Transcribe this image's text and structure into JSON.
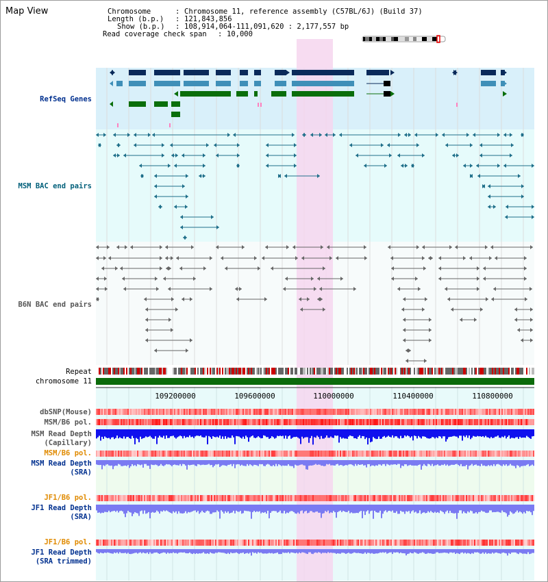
{
  "app_title": "Map View",
  "info": {
    "chromosome_key": "Chromosome",
    "chromosome_val": "Chromosome 11, reference assembly (C57BL/6J) (Build 37)",
    "length_key": "Length (b.p.)",
    "length_val": "121,843,856",
    "show_key": "Show (b.p.)",
    "show_val": "108,914,064-111,091,620 : 2,177,557 bp",
    "coverage_key": "Read coverage check span",
    "coverage_val": "10,000"
  },
  "tracks": {
    "refseq": "RefSeq Genes",
    "msm_bac": "MSM BAC end pairs",
    "b6n_bac": "B6N BAC end pairs",
    "repeat": "Repeat",
    "chromosome": "chromosome 11",
    "dbsnp": "dbSNP(Mouse)",
    "msm_b6_pol_1": "MSM/B6 pol.",
    "msm_read_depth_cap_1": "MSM Read Depth",
    "msm_read_depth_cap_2": "(Capillary)",
    "msm_b6_pol_2": "MSM/B6 pol.",
    "msm_read_depth_sra_1": "MSM Read Depth",
    "msm_read_depth_sra_2": "(SRA)",
    "jf1_b6_pol_1": "JF1/B6 pol.",
    "jf1_read_depth_sra_1": "JF1 Read Depth",
    "jf1_read_depth_sra_2": "(SRA)",
    "jf1_b6_pol_2": "JF1/B6 pol.",
    "jf1_read_depth_trim_1": "JF1 Read Depth",
    "jf1_read_depth_trim_2": "(SRA trimmed)"
  },
  "axis": {
    "ticks": [
      "109200000",
      "109600000",
      "110000000",
      "110400000",
      "110800000"
    ]
  },
  "colors": {
    "highlight": "#f6d6ee",
    "refseq_bg": "#d9f0fa",
    "msm_bg": "#e6fbfb",
    "b6n_bg": "#f7fbfb",
    "gene_navy": "#0a2a5a",
    "gene_blue": "#3f8fb8",
    "gene_green": "#0a6e0a",
    "msm_line": "#1f6f8a",
    "b6n_line": "#666666",
    "chrom_green": "#0b6b0b",
    "label_blue": "#00308f",
    "label_teal": "#005f7a",
    "label_orange": "#e08a00",
    "depth_dark": "#1010ee",
    "depth_light": "#7a7af2"
  }
}
